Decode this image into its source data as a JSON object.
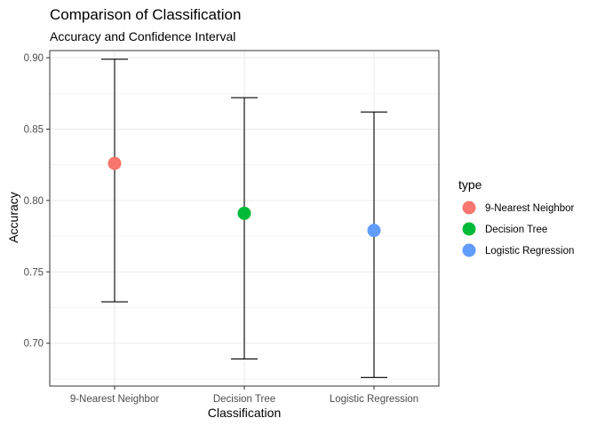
{
  "chart_data": {
    "type": "scatter",
    "title": "Comparison of Classification",
    "subtitle": "Accuracy and Confidence Interval",
    "xlabel": "Classification",
    "ylabel": "Accuracy",
    "categories": [
      "9-Nearest Neighbor",
      "Decision Tree",
      "Logistic Regression"
    ],
    "points": [
      {
        "category": "9-Nearest Neighbor",
        "value": 0.826,
        "lower": 0.729,
        "upper": 0.899
      },
      {
        "category": "Decision Tree",
        "value": 0.791,
        "lower": 0.689,
        "upper": 0.872
      },
      {
        "category": "Logistic Regression",
        "value": 0.779,
        "lower": 0.676,
        "upper": 0.862
      }
    ],
    "ylim": [
      0.67,
      0.905
    ],
    "yticks": [
      0.7,
      0.75,
      0.8,
      0.85,
      0.9
    ],
    "ytick_labels": [
      "0.70",
      "0.75",
      "0.80",
      "0.85",
      "0.90"
    ],
    "grid": true,
    "legend": {
      "title": "type",
      "placement": "right",
      "entries": [
        {
          "label": "9-Nearest Neighbor",
          "color": "#F8766D"
        },
        {
          "label": "Decision Tree",
          "color": "#00BA38"
        },
        {
          "label": "Logistic Regression",
          "color": "#619CFF"
        }
      ]
    }
  }
}
